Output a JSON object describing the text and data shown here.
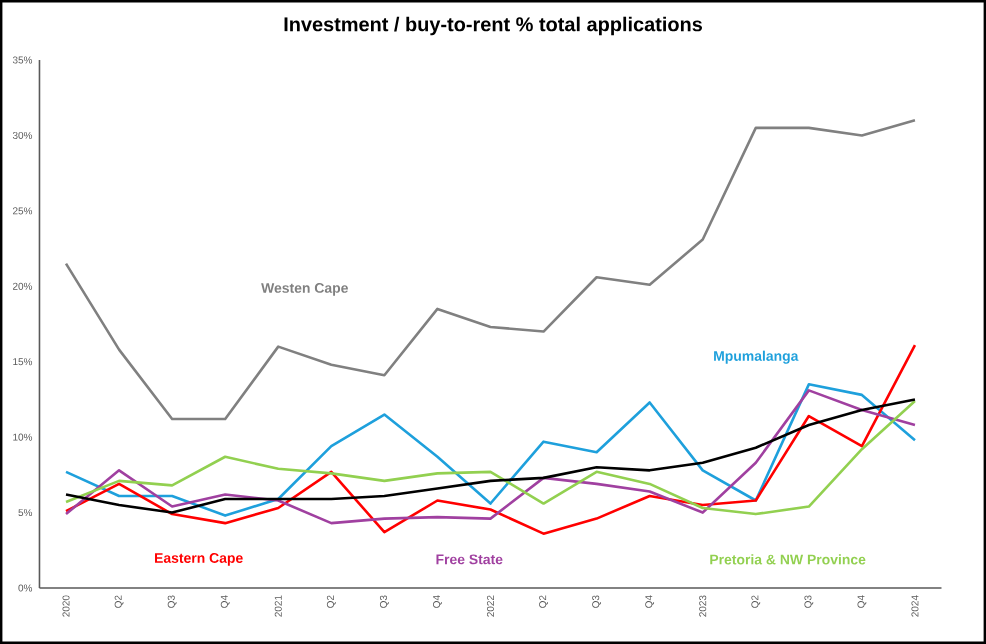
{
  "chart_data": {
    "type": "line",
    "title": "Investment / buy-to-rent % total applications",
    "categories": [
      "2020",
      "Q2",
      "Q3",
      "Q4",
      "2021",
      "Q2",
      "Q3",
      "Q4",
      "2022",
      "Q2",
      "Q3",
      "Q4",
      "2023",
      "Q2",
      "Q3",
      "Q4",
      "2024"
    ],
    "ylim": [
      0,
      35
    ],
    "yticks": [
      {
        "value": 0,
        "label": "0%"
      },
      {
        "value": 5,
        "label": "5%"
      },
      {
        "value": 10,
        "label": "10%"
      },
      {
        "value": 15,
        "label": "15%"
      },
      {
        "value": 20,
        "label": "20%"
      },
      {
        "value": 25,
        "label": "25%"
      },
      {
        "value": 30,
        "label": "30%"
      },
      {
        "value": 35,
        "label": "35%"
      }
    ],
    "grid": false,
    "legend": false,
    "marker": "none",
    "line_style": "solid",
    "series": [
      {
        "name": "Westen Cape",
        "color": "#808080",
        "values": [
          21.5,
          15.8,
          11.2,
          11.2,
          16.0,
          14.8,
          14.1,
          18.5,
          17.3,
          17.0,
          20.6,
          20.1,
          23.1,
          30.5,
          30.5,
          30.0,
          31.0
        ]
      },
      {
        "name": "Mpumalanga",
        "color": "#1ea0dc",
        "values": [
          7.7,
          6.1,
          6.1,
          4.8,
          5.9,
          9.4,
          11.5,
          8.7,
          5.6,
          9.7,
          9.0,
          12.3,
          7.8,
          5.8,
          13.5,
          12.8,
          9.8
        ]
      },
      {
        "name": "Eastern Cape",
        "color": "#ff0000",
        "values": [
          5.1,
          6.9,
          4.9,
          4.3,
          5.3,
          7.7,
          3.7,
          5.8,
          5.2,
          3.6,
          4.6,
          6.1,
          5.5,
          5.8,
          11.4,
          9.4,
          16.1
        ]
      },
      {
        "name": "Free State",
        "color": "#a040a0",
        "values": [
          4.9,
          7.8,
          5.4,
          6.2,
          5.8,
          4.3,
          4.6,
          4.7,
          4.6,
          7.3,
          6.9,
          6.4,
          5.0,
          8.3,
          13.1,
          11.8,
          10.8
        ]
      },
      {
        "name": "Pretoria & NW Province",
        "color": "#92d050",
        "values": [
          5.7,
          7.1,
          6.8,
          8.7,
          7.9,
          7.6,
          7.1,
          7.6,
          7.7,
          5.6,
          7.7,
          6.9,
          5.3,
          4.9,
          5.4,
          9.2,
          12.4
        ]
      },
      {
        "color": "#000000",
        "values": [
          6.2,
          5.5,
          5.0,
          5.9,
          5.9,
          5.9,
          6.1,
          6.6,
          7.1,
          7.3,
          8.0,
          7.8,
          8.3,
          9.3,
          10.8,
          11.8,
          12.5
        ]
      }
    ]
  }
}
